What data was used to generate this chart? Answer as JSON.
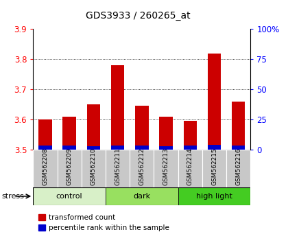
{
  "title": "GDS3933 / 260265_at",
  "samples": [
    "GSM562208",
    "GSM562209",
    "GSM562210",
    "GSM562211",
    "GSM562212",
    "GSM562213",
    "GSM562214",
    "GSM562215",
    "GSM562216"
  ],
  "red_values": [
    3.6,
    3.61,
    3.65,
    3.78,
    3.645,
    3.61,
    3.595,
    3.82,
    3.66
  ],
  "blue_values": [
    0.012,
    0.012,
    0.01,
    0.014,
    0.012,
    0.01,
    0.012,
    0.015,
    0.012
  ],
  "ylim": [
    3.5,
    3.9
  ],
  "y_ticks_left": [
    3.5,
    3.6,
    3.7,
    3.8,
    3.9
  ],
  "y_ticks_right": [
    0,
    25,
    50,
    75,
    100
  ],
  "bar_base": 3.5,
  "groups": [
    {
      "label": "control",
      "indices": [
        0,
        1,
        2
      ],
      "color": "#d8f0c8"
    },
    {
      "label": "dark",
      "indices": [
        3,
        4,
        5
      ],
      "color": "#98e060"
    },
    {
      "label": "high light",
      "indices": [
        6,
        7,
        8
      ],
      "color": "#44cc22"
    }
  ],
  "red_color": "#cc0000",
  "blue_color": "#0000cc",
  "bg_label": "#c8c8c8",
  "stress_label": "stress",
  "legend_red": "transformed count",
  "legend_blue": "percentile rank within the sample",
  "bar_width": 0.55
}
